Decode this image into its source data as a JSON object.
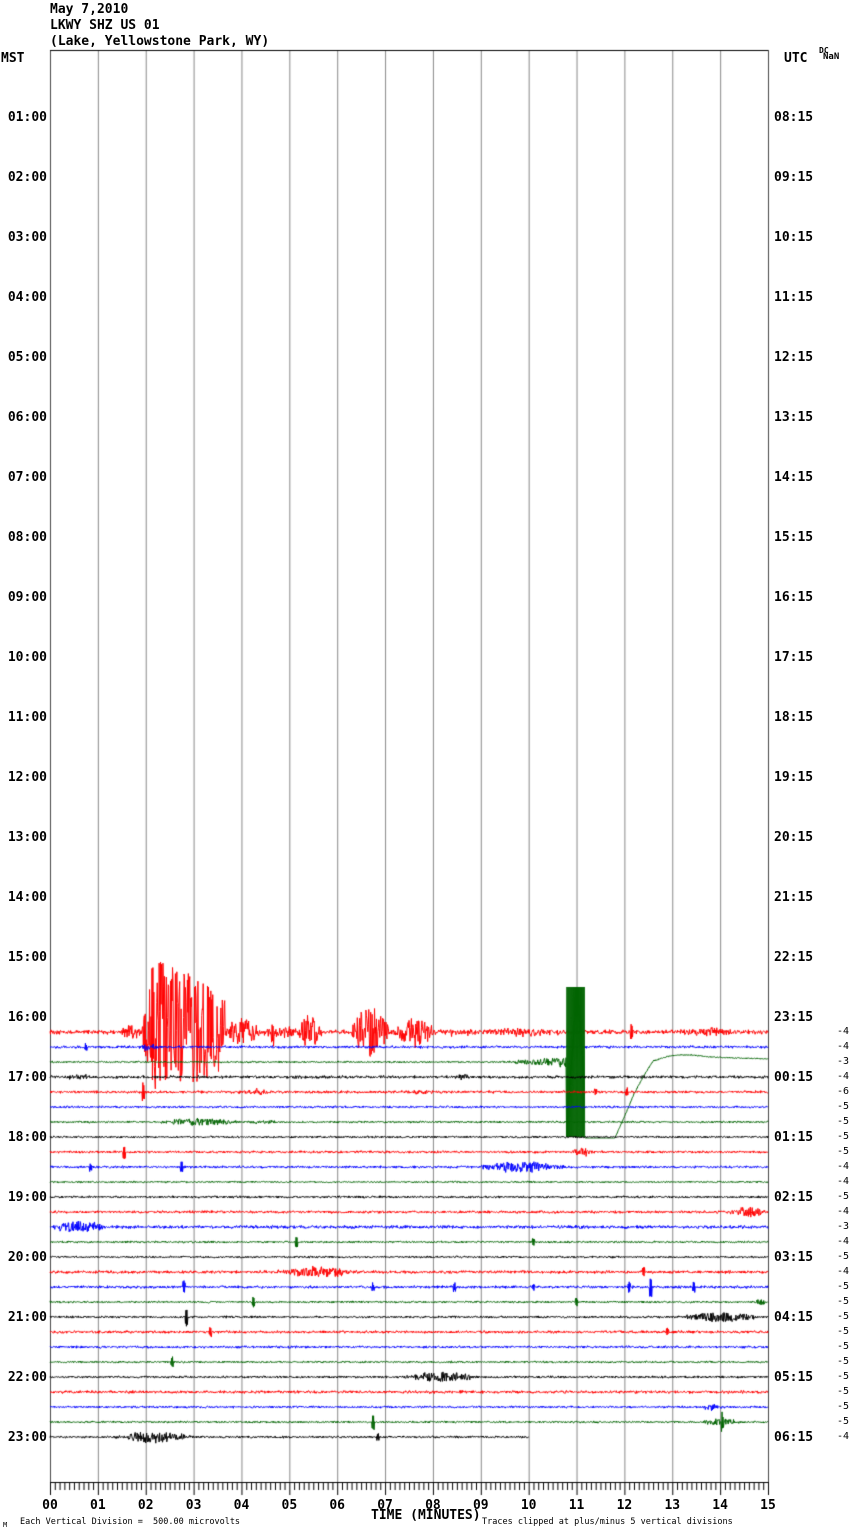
{
  "header": {
    "date": "May 7,2010",
    "station": "LKWY SHZ US 01",
    "location": "(Lake, Yellowstone Park, WY)"
  },
  "axes": {
    "left_label": "MST",
    "right_label": "UTC",
    "dc_line1": "DC",
    "dc_line2": "NaN",
    "xlabel": "TIME (MINUTES)",
    "left_times": [
      "01:00",
      "02:00",
      "03:00",
      "04:00",
      "05:00",
      "06:00",
      "07:00",
      "08:00",
      "09:00",
      "10:00",
      "11:00",
      "12:00",
      "13:00",
      "14:00",
      "15:00",
      "16:00",
      "17:00",
      "18:00",
      "19:00",
      "20:00",
      "21:00",
      "22:00",
      "23:00"
    ],
    "right_times": [
      "08:15",
      "09:15",
      "10:15",
      "11:15",
      "12:15",
      "13:15",
      "14:15",
      "15:15",
      "16:15",
      "17:15",
      "18:15",
      "19:15",
      "20:15",
      "21:15",
      "22:15",
      "23:15",
      "00:15",
      "01:15",
      "02:15",
      "03:15",
      "04:15",
      "05:15",
      "06:15"
    ],
    "minute_labels": [
      "00",
      "01",
      "02",
      "03",
      "04",
      "05",
      "06",
      "07",
      "08",
      "09",
      "10",
      "11",
      "12",
      "13",
      "14",
      "15"
    ]
  },
  "footer": {
    "watermark": "M",
    "scale_note": "Each Vertical Division =  500.00 microvolts",
    "clip_note": "Traces clipped at plus/minus 5 vertical divisions"
  },
  "chart_data": {
    "type": "line",
    "subtype": "webicorder-seismogram",
    "title": "LKWY SHZ US 01 (Lake, Yellowstone Park, WY) May 7,2010",
    "x_axis": {
      "label": "TIME (MINUTES)",
      "range": [
        0,
        15
      ],
      "major_tick": 1,
      "minor_tick": 0.1
    },
    "minutes_per_line": 15,
    "vertical_division_microvolts": 500.0,
    "clip_divisions": 5,
    "colors": {
      "red": "#ff0000",
      "blue": "#0000ff",
      "green": "#006400",
      "black": "#000000"
    },
    "color_cycle": [
      "red",
      "blue",
      "green",
      "black"
    ],
    "note": "traces begin at 23:15 UTC (16:00 MST); earlier hours have no data; events encoded as [type, start_min, end_min_or_amp, amp_px]",
    "traces": [
      {
        "color": "red",
        "gain": "-4",
        "noise": 2.0,
        "events": [
          [
            "burst",
            1.45,
            1.95,
            7
          ],
          [
            "quake",
            1.9,
            3.65,
            75
          ],
          [
            "burst",
            3.6,
            4.45,
            13
          ],
          [
            "burst",
            4.4,
            5.2,
            6
          ],
          [
            "spike",
            4.65,
            8
          ],
          [
            "burst",
            5.15,
            5.7,
            18
          ],
          [
            "burst",
            6.25,
            7.15,
            26
          ],
          [
            "burst",
            7.15,
            8.1,
            15
          ],
          [
            "burst",
            8.05,
            9.0,
            3
          ],
          [
            "burst",
            8.9,
            10.75,
            4
          ],
          [
            "spike",
            12.15,
            7
          ],
          [
            "burst",
            13.1,
            14.4,
            3.5
          ]
        ]
      },
      {
        "color": "blue",
        "gain": "-4",
        "noise": 1.2,
        "events": [
          [
            "spike",
            0.75,
            3
          ],
          [
            "burst",
            1.85,
            2.3,
            3
          ]
        ]
      },
      {
        "color": "green",
        "gain": "-3",
        "noise": 0.8,
        "events": [
          [
            "ramp",
            9.35,
            10.78,
            5
          ]
        ],
        "block": [
          10.78,
          11.17
        ],
        "recovery": [
          [
            11.35,
            112
          ],
          [
            11.6,
            100
          ],
          [
            11.8,
            76
          ],
          [
            12.0,
            55
          ],
          [
            12.2,
            32
          ],
          [
            12.4,
            14
          ],
          [
            12.6,
            -1
          ],
          [
            12.85,
            -5
          ],
          [
            13.1,
            -7
          ],
          [
            13.4,
            -7
          ],
          [
            13.8,
            -5
          ],
          [
            14.3,
            -4
          ],
          [
            15,
            -3
          ]
        ]
      },
      {
        "color": "black",
        "gain": "-4",
        "noise": 1.3,
        "events": [
          [
            "burst",
            0.3,
            0.9,
            2
          ],
          [
            "burst",
            8.45,
            8.85,
            2.5
          ]
        ]
      },
      {
        "color": "red",
        "gain": "-6",
        "noise": 1.2,
        "events": [
          [
            "spike",
            1.95,
            8
          ],
          [
            "burst",
            4.0,
            4.6,
            2.5
          ],
          [
            "burst",
            7.2,
            8.1,
            2
          ],
          [
            "spike",
            11.4,
            3
          ],
          [
            "spike",
            12.05,
            4
          ]
        ]
      },
      {
        "color": "blue",
        "gain": "-5",
        "noise": 1.0,
        "events": []
      },
      {
        "color": "green",
        "gain": "-5",
        "noise": 0.9,
        "events": [
          [
            "burst",
            2.2,
            4.05,
            3.5
          ],
          [
            "burst",
            4.05,
            4.9,
            1.5
          ]
        ]
      },
      {
        "color": "black",
        "gain": "-5",
        "noise": 0.9,
        "events": []
      },
      {
        "color": "red",
        "gain": "-5",
        "noise": 1.1,
        "events": [
          [
            "spike",
            1.55,
            6
          ],
          [
            "burst",
            10.85,
            11.4,
            4
          ]
        ]
      },
      {
        "color": "blue",
        "gain": "-4",
        "noise": 1.1,
        "events": [
          [
            "spike",
            0.85,
            3
          ],
          [
            "spike",
            2.75,
            4
          ],
          [
            "burst",
            8.9,
            10.9,
            5.5
          ]
        ]
      },
      {
        "color": "green",
        "gain": "-4",
        "noise": 0.8,
        "events": []
      },
      {
        "color": "black",
        "gain": "-5",
        "noise": 1.0,
        "events": []
      },
      {
        "color": "red",
        "gain": "-4",
        "noise": 1.2,
        "events": [
          [
            "burst",
            14.15,
            15,
            5
          ]
        ]
      },
      {
        "color": "blue",
        "gain": "-3",
        "noise": 1.4,
        "events": [
          [
            "burst",
            0,
            1.2,
            6
          ]
        ]
      },
      {
        "color": "green",
        "gain": "-4",
        "noise": 0.9,
        "events": [
          [
            "spike",
            5.15,
            5
          ],
          [
            "spike",
            10.1,
            3
          ]
        ]
      },
      {
        "color": "black",
        "gain": "-5",
        "noise": 0.9,
        "events": []
      },
      {
        "color": "red",
        "gain": "-4",
        "noise": 1.3,
        "events": [
          [
            "burst",
            4.65,
            6.55,
            5
          ],
          [
            "spike",
            12.4,
            4
          ]
        ]
      },
      {
        "color": "blue",
        "gain": "-5",
        "noise": 1.2,
        "events": [
          [
            "spike",
            2.8,
            5
          ],
          [
            "spike",
            6.75,
            3
          ],
          [
            "spike",
            8.45,
            4
          ],
          [
            "spike",
            10.1,
            3
          ],
          [
            "spike",
            12.1,
            4
          ],
          [
            "spike",
            12.55,
            8
          ],
          [
            "spike",
            13.45,
            4
          ]
        ]
      },
      {
        "color": "green",
        "gain": "-5",
        "noise": 0.9,
        "events": [
          [
            "spike",
            4.25,
            4
          ],
          [
            "spike",
            11.0,
            3
          ],
          [
            "burst",
            14.7,
            15,
            3
          ]
        ]
      },
      {
        "color": "black",
        "gain": "-5",
        "noise": 1.0,
        "events": [
          [
            "spike",
            2.85,
            8
          ],
          [
            "burst",
            13.15,
            14.9,
            5
          ]
        ]
      },
      {
        "color": "red",
        "gain": "-5",
        "noise": 1.2,
        "events": [
          [
            "spike",
            3.35,
            4
          ],
          [
            "spike",
            12.9,
            3
          ]
        ]
      },
      {
        "color": "blue",
        "gain": "-5",
        "noise": 1.1,
        "events": []
      },
      {
        "color": "green",
        "gain": "-5",
        "noise": 0.9,
        "events": [
          [
            "spike",
            2.55,
            4
          ]
        ]
      },
      {
        "color": "black",
        "gain": "-5",
        "noise": 1.0,
        "events": [
          [
            "burst",
            7.35,
            9.05,
            5
          ]
        ]
      },
      {
        "color": "red",
        "gain": "-5",
        "noise": 1.3,
        "events": []
      },
      {
        "color": "blue",
        "gain": "-5",
        "noise": 1.0,
        "events": [
          [
            "burst",
            13.6,
            14.05,
            3.5
          ]
        ]
      },
      {
        "color": "green",
        "gain": "-5",
        "noise": 0.9,
        "events": [
          [
            "spike",
            6.75,
            7
          ],
          [
            "burst",
            13.55,
            14.5,
            3
          ],
          [
            "spike",
            14.05,
            8
          ]
        ]
      },
      {
        "color": "black",
        "gain": "-4",
        "noise": 1.0,
        "events": [
          [
            "burst",
            1.3,
            3.05,
            5.5
          ],
          [
            "spike",
            6.85,
            3
          ]
        ],
        "end_minute": 10
      }
    ]
  }
}
